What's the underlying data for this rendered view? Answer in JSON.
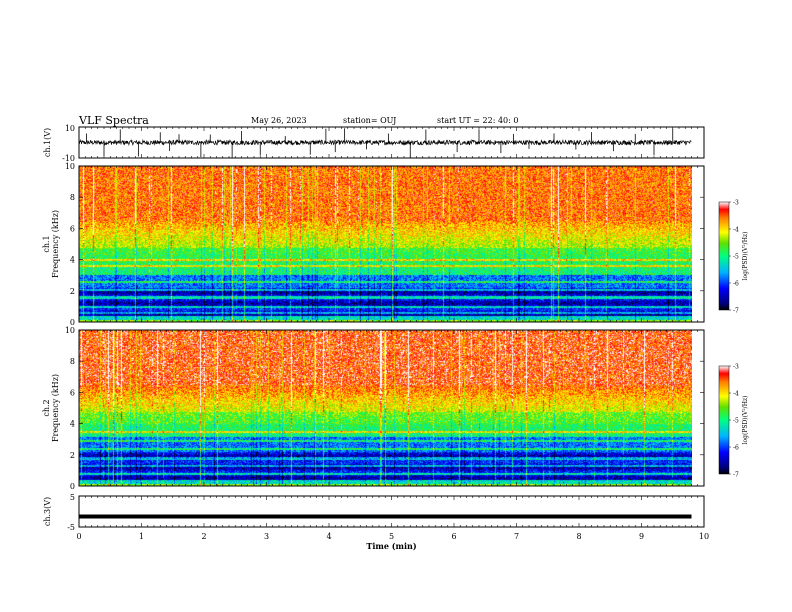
{
  "header": {
    "title": "VLF Spectra",
    "date": "May 26, 2023",
    "station": "station= OUJ",
    "start": "start  UT  =   22: 40: 0"
  },
  "chart_data": [
    {
      "type": "line",
      "panel": "ch1-waveform",
      "ylabel": "ch.1(V)",
      "ytick_labels": [
        "10",
        "-10"
      ],
      "ylim": [
        -10,
        10
      ],
      "baseline": 0,
      "noise_amplitude": 1.5,
      "spike_times_min": [
        0.12,
        0.4,
        0.66,
        0.95,
        1.3,
        1.45,
        1.6,
        1.95,
        2.1,
        2.45,
        2.6,
        2.9,
        3.3,
        3.7,
        3.95,
        4.1,
        4.25,
        4.6,
        4.95,
        5.3,
        5.55,
        6.05,
        6.4,
        6.75,
        6.95,
        7.2,
        7.6,
        7.95,
        8.2,
        8.55,
        8.9,
        9.2,
        9.5
      ]
    },
    {
      "type": "heatmap",
      "panel": "ch1-spectrogram",
      "ylabel": "ch.1\nFrequency (kHz)",
      "ytick_labels": [
        "0",
        "2",
        "4",
        "6",
        "8",
        "10"
      ],
      "ylim": [
        0,
        10
      ],
      "xlim": [
        0,
        9.8
      ],
      "colorbar": {
        "label": "log(PSD)(V²/Hz)",
        "tick_labels": [
          "-3",
          "-4",
          "-5",
          "-6",
          "-7"
        ],
        "range": [
          -7,
          -3
        ]
      },
      "bands_khz": [
        0.1,
        0.6,
        1.0,
        1.6,
        2.1,
        2.6,
        3.1,
        3.6,
        4.0
      ],
      "notes": "log PSD high (red, about -3) above ~5 kHz, green around 3-5 kHz, blue/navy minimum (about -7) near 0.5-2 kHz"
    },
    {
      "type": "heatmap",
      "panel": "ch2-spectrogram",
      "ylabel": "ch.2\nFrequency (kHz)",
      "ytick_labels": [
        "0",
        "2",
        "4",
        "6",
        "8",
        "10"
      ],
      "ylim": [
        0,
        10
      ],
      "xlim": [
        0,
        9.8
      ],
      "colorbar": {
        "label": "log(PSD)(V²/Hz)",
        "tick_labels": [
          "-3",
          "-4",
          "-5",
          "-6",
          "-7"
        ],
        "range": [
          -7,
          -3
        ]
      },
      "bands_khz": [
        0.1,
        0.8,
        1.3,
        1.8,
        2.4,
        2.9,
        3.5
      ],
      "notes": "similar to ch.1 with slightly more red extending lower; blue minimum near 0.5-2 kHz"
    },
    {
      "type": "line",
      "panel": "ch3-waveform",
      "ylabel": "ch.3(V)",
      "ytick_labels": [
        "5",
        "-5"
      ],
      "ylim": [
        -5,
        5
      ],
      "baseline": -1.6,
      "noise_amplitude": 0.1
    },
    {
      "type": "axis",
      "xlabel": "Time (min)",
      "xtick_labels": [
        "0",
        "1",
        "2",
        "3",
        "4",
        "5",
        "6",
        "7",
        "8",
        "9",
        "10"
      ],
      "xlim": [
        0,
        10
      ],
      "data_extent_min": 9.8
    }
  ]
}
